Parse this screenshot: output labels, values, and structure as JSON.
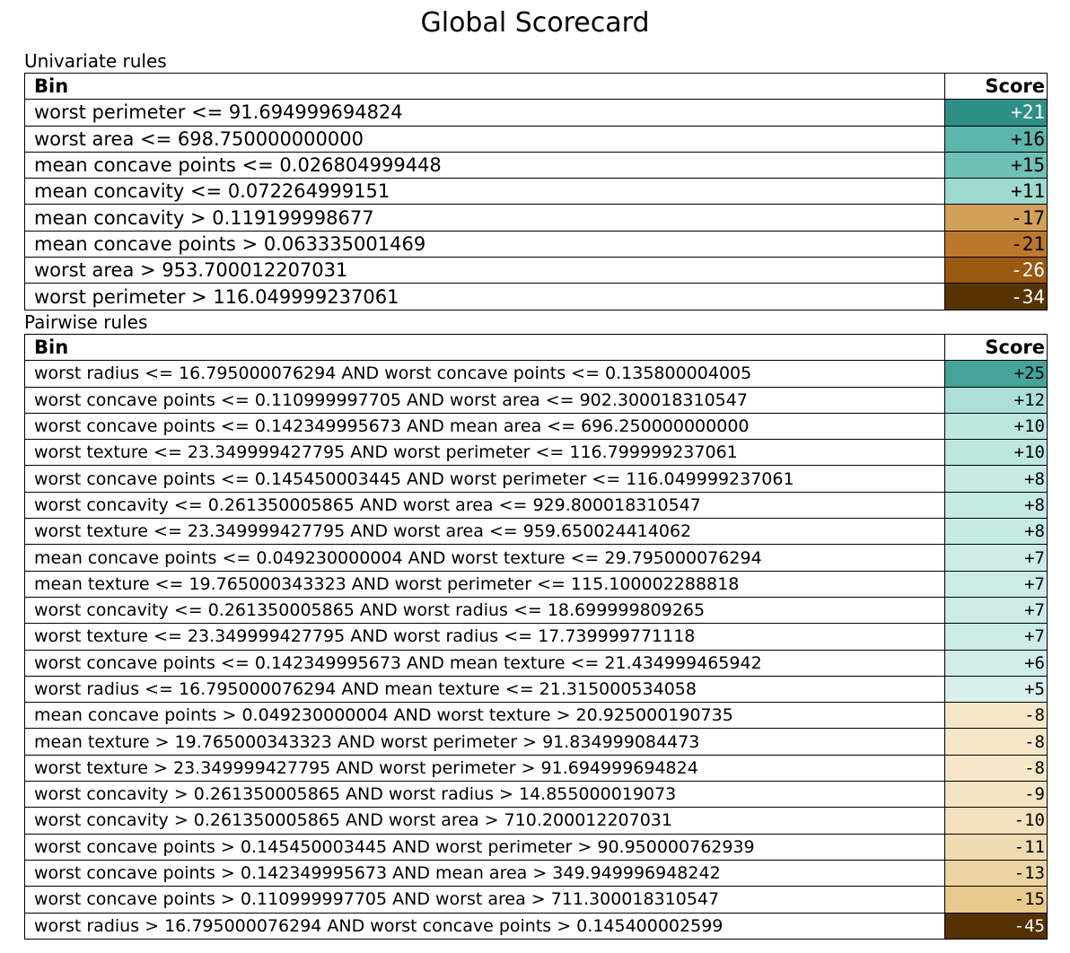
{
  "title": "Global Scorecard",
  "chart_data": {
    "type": "table",
    "title": "Global Scorecard",
    "columns": [
      "Bin",
      "Score"
    ],
    "sections": [
      {
        "label": "Univariate rules",
        "rows": [
          {
            "bin": "worst perimeter <= 91.694999694824",
            "score": "+21",
            "value": 21,
            "color": "#2e8f87",
            "text_color": "#ffffff"
          },
          {
            "bin": "worst area <= 698.750000000000",
            "score": "+16",
            "value": 16,
            "color": "#5cb5aa",
            "text_color": "#000000"
          },
          {
            "bin": "mean concave points <= 0.026804999448",
            "score": "+15",
            "value": 15,
            "color": "#6fc1b6",
            "text_color": "#000000"
          },
          {
            "bin": "mean concavity <= 0.072264999151",
            "score": "+11",
            "value": 11,
            "color": "#9ddad0",
            "text_color": "#000000"
          },
          {
            "bin": "mean concavity > 0.119199998677",
            "score": "-17",
            "value": -17,
            "color": "#d3a05a",
            "text_color": "#000000"
          },
          {
            "bin": "mean concave points > 0.063335001469",
            "score": "-21",
            "value": -21,
            "color": "#bc772c",
            "text_color": "#000000"
          },
          {
            "bin": "worst area > 953.700012207031",
            "score": "-26",
            "value": -26,
            "color": "#9a5910",
            "text_color": "#ffffff"
          },
          {
            "bin": "worst perimeter > 116.049999237061",
            "score": "-34",
            "value": -34,
            "color": "#573300",
            "text_color": "#ffffff"
          }
        ]
      },
      {
        "label": "Pairwise rules",
        "rows": [
          {
            "bin": "worst radius <= 16.795000076294 AND worst concave points <= 0.135800004005",
            "score": "+25",
            "value": 25,
            "color": "#45a39a",
            "text_color": "#000000"
          },
          {
            "bin": "worst concave points <= 0.110999997705 AND worst area <= 902.300018310547",
            "score": "+12",
            "value": 12,
            "color": "#addfd8",
            "text_color": "#000000"
          },
          {
            "bin": "worst concave points <= 0.142349995673 AND mean area <= 696.250000000000",
            "score": "+10",
            "value": 10,
            "color": "#bde7e1",
            "text_color": "#000000"
          },
          {
            "bin": "worst texture <= 23.349999427795 AND worst perimeter <= 116.799999237061",
            "score": "+10",
            "value": 10,
            "color": "#bde7e1",
            "text_color": "#000000"
          },
          {
            "bin": "worst concave points <= 0.145450003445 AND worst perimeter <= 116.049999237061",
            "score": "+8",
            "value": 8,
            "color": "#c6eae5",
            "text_color": "#000000"
          },
          {
            "bin": "worst concavity <= 0.261350005865 AND worst area <= 929.800018310547",
            "score": "+8",
            "value": 8,
            "color": "#c6eae5",
            "text_color": "#000000"
          },
          {
            "bin": "worst texture <= 23.349999427795 AND worst area <= 959.650024414062",
            "score": "+8",
            "value": 8,
            "color": "#c6eae5",
            "text_color": "#000000"
          },
          {
            "bin": "mean concave points <= 0.049230000004 AND worst texture <= 29.795000076294",
            "score": "+7",
            "value": 7,
            "color": "#cbece7",
            "text_color": "#000000"
          },
          {
            "bin": "mean texture <= 19.765000343323 AND worst perimeter <= 115.100002288818",
            "score": "+7",
            "value": 7,
            "color": "#cbece7",
            "text_color": "#000000"
          },
          {
            "bin": "worst concavity <= 0.261350005865 AND worst radius <= 18.699999809265",
            "score": "+7",
            "value": 7,
            "color": "#cbece7",
            "text_color": "#000000"
          },
          {
            "bin": "worst texture <= 23.349999427795 AND worst radius <= 17.739999771118",
            "score": "+7",
            "value": 7,
            "color": "#cbece7",
            "text_color": "#000000"
          },
          {
            "bin": "worst concave points <= 0.142349995673 AND mean texture <= 21.434999465942",
            "score": "+6",
            "value": 6,
            "color": "#d1ede9",
            "text_color": "#000000"
          },
          {
            "bin": "worst radius <= 16.795000076294 AND mean texture <= 21.315000534058",
            "score": "+5",
            "value": 5,
            "color": "#d8efec",
            "text_color": "#000000"
          },
          {
            "bin": "mean concave points > 0.049230000004 AND worst texture > 20.925000190735",
            "score": "-8",
            "value": -8,
            "color": "#f5e7c8",
            "text_color": "#000000"
          },
          {
            "bin": "mean texture > 19.765000343323 AND worst perimeter > 91.834999084473",
            "score": "-8",
            "value": -8,
            "color": "#f5e7c8",
            "text_color": "#000000"
          },
          {
            "bin": "worst texture > 23.349999427795 AND worst perimeter > 91.694999694824",
            "score": "-8",
            "value": -8,
            "color": "#f5e7c8",
            "text_color": "#000000"
          },
          {
            "bin": "worst concavity > 0.261350005865 AND worst radius > 14.855000019073",
            "score": "-9",
            "value": -9,
            "color": "#f4e5c3",
            "text_color": "#000000"
          },
          {
            "bin": "worst concavity > 0.261350005865 AND worst area > 710.200012207031",
            "score": "-10",
            "value": -10,
            "color": "#f3e2bd",
            "text_color": "#000000"
          },
          {
            "bin": "worst concave points > 0.145450003445 AND worst perimeter > 90.950000762939",
            "score": "-11",
            "value": -11,
            "color": "#f0dcb2",
            "text_color": "#000000"
          },
          {
            "bin": "worst concave points > 0.142349995673 AND mean area > 349.949996948242",
            "score": "-13",
            "value": -13,
            "color": "#edd5a2",
            "text_color": "#000000"
          },
          {
            "bin": "worst concave points > 0.110999997705 AND worst area > 711.300018310547",
            "score": "-15",
            "value": -15,
            "color": "#e8ca8e",
            "text_color": "#000000"
          },
          {
            "bin": "worst radius > 16.795000076294 AND worst concave points > 0.145400002599",
            "score": "-45",
            "value": -45,
            "color": "#553100",
            "text_color": "#ffffff"
          }
        ]
      }
    ]
  }
}
